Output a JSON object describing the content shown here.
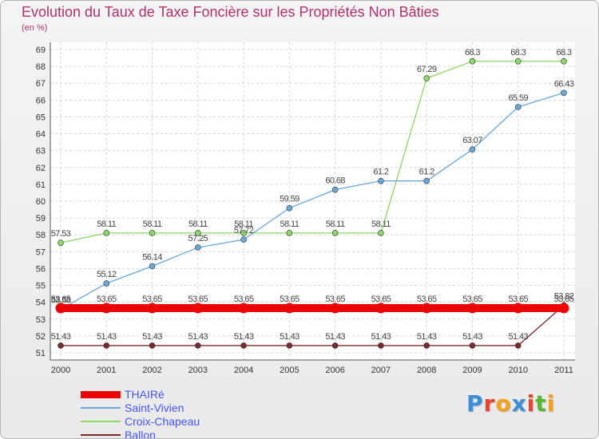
{
  "header": {
    "title": "Evolution du Taux de Taxe Foncière sur les Propriétés Non Bâties",
    "subtitle": "(en %)"
  },
  "logo": {
    "text": "Proxiti",
    "letters": [
      {
        "ch": "P",
        "color": "#3a8fd8"
      },
      {
        "ch": "r",
        "color": "#e8442e"
      },
      {
        "ch": "o",
        "color": "#f6a21e"
      },
      {
        "ch": "x",
        "color": "#3a8fd8"
      },
      {
        "ch": "i",
        "color": "#e8442e"
      },
      {
        "ch": "t",
        "color": "#5ab52f"
      },
      {
        "ch": "i",
        "color": "#f6a21e"
      }
    ]
  },
  "chart_data": {
    "type": "line",
    "x": [
      2000,
      2001,
      2002,
      2003,
      2004,
      2005,
      2006,
      2007,
      2008,
      2009,
      2010,
      2011
    ],
    "ylim": [
      51,
      69
    ],
    "yticks": [
      51,
      52,
      53,
      54,
      55,
      56,
      57,
      58,
      59,
      60,
      61,
      62,
      63,
      64,
      65,
      66,
      67,
      68,
      69
    ],
    "grid": true,
    "legend_position": "bottom-left",
    "series": [
      {
        "name": "Ballon",
        "color": "#7a2a2a",
        "values": [
          51.43,
          51.43,
          51.43,
          51.43,
          51.43,
          51.43,
          51.43,
          51.43,
          51.43,
          51.43,
          51.43,
          53.82
        ],
        "labels": [
          "51.43",
          "51.43",
          "51.43",
          "51.43",
          "51.43",
          "51.43",
          "51.43",
          "51.43",
          "51.43",
          "51.43",
          "51.43",
          "53.82"
        ]
      },
      {
        "name": "Croix-Chapeau",
        "color": "#8cd86a",
        "values": [
          57.53,
          58.11,
          58.11,
          58.11,
          58.11,
          58.11,
          58.11,
          58.11,
          67.29,
          68.3,
          68.3,
          68.3
        ],
        "labels": [
          "57.53",
          "58.11",
          "58.11",
          "58.11",
          "58.11",
          "58.11",
          "58.11",
          "58.11",
          "67.29",
          "68.3",
          "68.3",
          "68.3"
        ]
      },
      {
        "name": "Saint-Vivien",
        "color": "#6aa8d8",
        "values": [
          53.58,
          55.12,
          56.14,
          57.25,
          57.72,
          59.59,
          60.68,
          61.2,
          61.2,
          63.07,
          65.59,
          66.43
        ],
        "labels": [
          "53.58",
          "55.12",
          "56.14",
          "57.25",
          "57.72",
          "59.59",
          "60.68",
          "61.2",
          "61.2",
          "63.07",
          "65.59",
          "66.43"
        ]
      },
      {
        "name": "THAIRé",
        "color": "#ee0000",
        "values": [
          53.65,
          53.65,
          53.65,
          53.65,
          53.65,
          53.65,
          53.65,
          53.65,
          53.65,
          53.65,
          53.65,
          53.65
        ],
        "labels": [
          "53.65",
          "53.65",
          "53.65",
          "53.65",
          "53.65",
          "53.65",
          "53.65",
          "53.65",
          "53.65",
          "53.65",
          "53.65",
          "53.65"
        ]
      }
    ],
    "legend_order": [
      "THAIRé",
      "Saint-Vivien",
      "Croix-Chapeau",
      "Ballon"
    ]
  }
}
